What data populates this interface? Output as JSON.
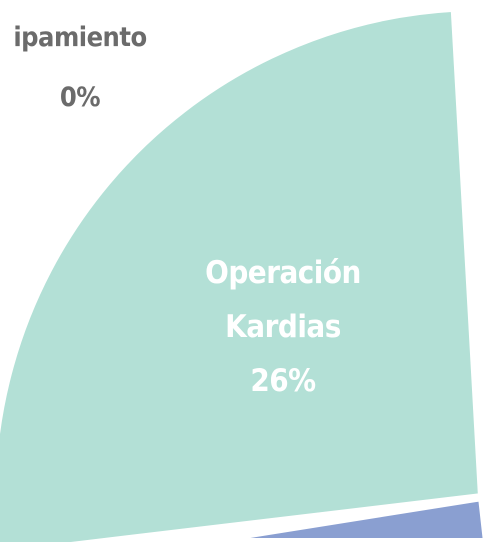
{
  "chart_data": {
    "type": "pie",
    "categories": [
      "ipamiento",
      "Operación Kardias"
    ],
    "values": [
      0,
      26
    ],
    "value_labels": [
      "0%",
      "26%"
    ],
    "colors": [
      "#9e9e9e",
      "#b3e0d6"
    ]
  }
}
